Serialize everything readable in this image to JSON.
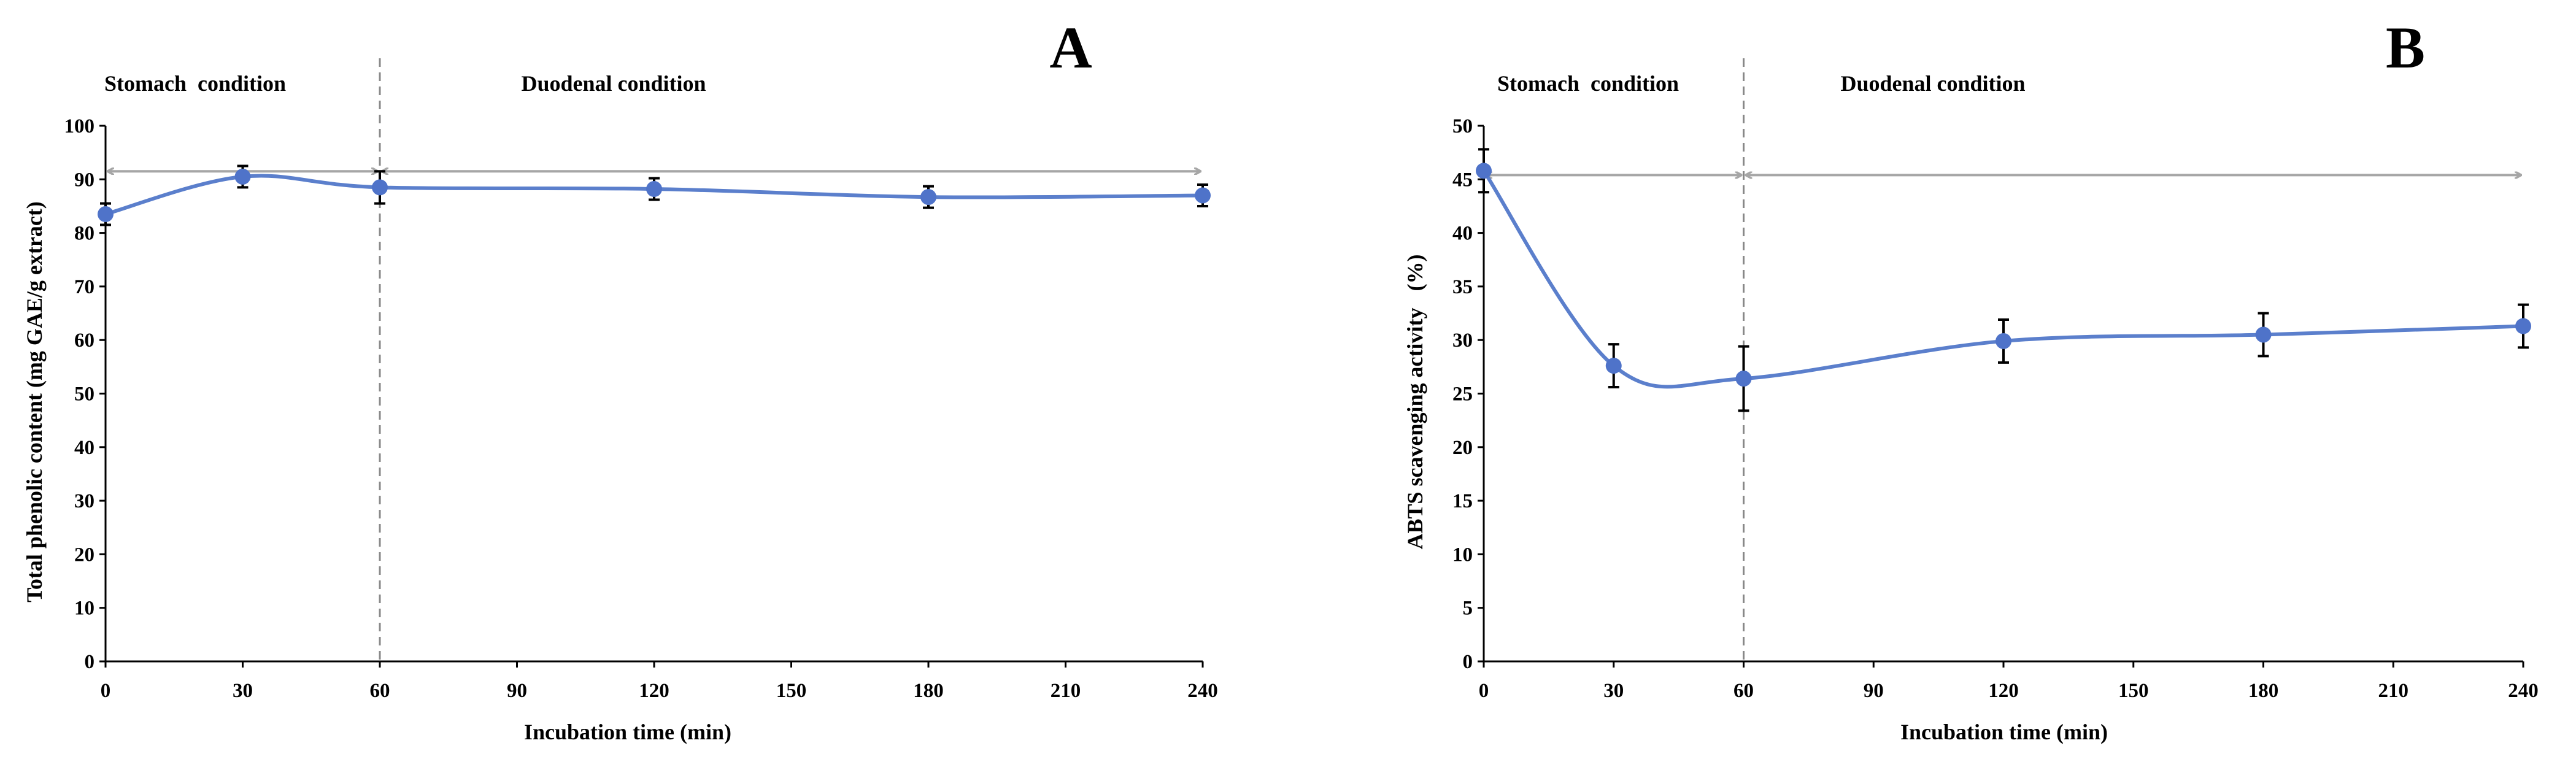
{
  "chart_data": [
    {
      "type": "line",
      "panel_label": "A",
      "xlabel": "Incubation time (min)",
      "ylabel": "Total phenolic content (mg GAE/g extract)",
      "x": [
        0,
        30,
        60,
        120,
        180,
        240
      ],
      "y": [
        83.5,
        90.5,
        88.5,
        88.2,
        86.7,
        87.0
      ],
      "errors": [
        2.0,
        2.0,
        3.0,
        2.0,
        2.0,
        2.0
      ],
      "xlim": [
        0,
        240
      ],
      "ylim": [
        0,
        100
      ],
      "xticks": [
        0,
        30,
        60,
        90,
        120,
        150,
        180,
        210,
        240
      ],
      "yticks": [
        0,
        10,
        20,
        30,
        40,
        50,
        60,
        70,
        80,
        90,
        100
      ],
      "phase_boundary_x": 60,
      "arrow_y": 91.5,
      "phases": [
        "Stomach  condition",
        "Duodenal condition"
      ],
      "grid": false,
      "colors": {
        "line": "#5b7fcc",
        "marker": "#4f73c9",
        "arrow": "#a6a6a6",
        "divider": "#888888"
      }
    },
    {
      "type": "line",
      "panel_label": "B",
      "xlabel": "Incubation time (min)",
      "ylabel": "ABTS scavenging activity   (%)",
      "x": [
        0,
        30,
        60,
        120,
        180,
        240
      ],
      "y": [
        45.8,
        27.6,
        26.4,
        29.9,
        30.5,
        31.3
      ],
      "errors": [
        2.0,
        2.0,
        3.0,
        2.0,
        2.0,
        2.0
      ],
      "xlim": [
        0,
        240
      ],
      "ylim": [
        0,
        50
      ],
      "xticks": [
        0,
        30,
        60,
        90,
        120,
        150,
        180,
        210,
        240
      ],
      "yticks": [
        0,
        5,
        10,
        15,
        20,
        25,
        30,
        35,
        40,
        45,
        50
      ],
      "phase_boundary_x": 60,
      "arrow_y": 45.4,
      "phases": [
        "Stomach  condition",
        "Duodenal condition"
      ],
      "grid": false,
      "colors": {
        "line": "#5b7fcc",
        "marker": "#4f73c9",
        "arrow": "#a6a6a6",
        "divider": "#888888"
      }
    }
  ]
}
